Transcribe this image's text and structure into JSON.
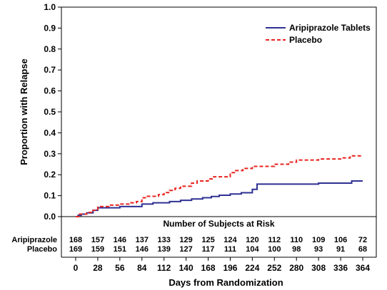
{
  "chart_data": {
    "type": "line",
    "step": true,
    "title": "",
    "xlabel": "Days from Randomization",
    "ylabel": "Proportion with Relapse",
    "xlim": [
      0,
      364
    ],
    "ylim": [
      0,
      1.0
    ],
    "xticks": [
      0,
      28,
      56,
      84,
      112,
      140,
      168,
      196,
      224,
      252,
      280,
      308,
      336,
      364
    ],
    "yticks": [
      0.0,
      0.1,
      0.2,
      0.3,
      0.4,
      0.5,
      0.6,
      0.7,
      0.8,
      0.9,
      1.0
    ],
    "legend_position": "top-right",
    "grid": false,
    "series": [
      {
        "name": "Aripiprazole Tablets",
        "color": "#2e3192",
        "dash": "solid",
        "points": [
          [
            0,
            0
          ],
          [
            3,
            0.006
          ],
          [
            7,
            0.012
          ],
          [
            14,
            0.018
          ],
          [
            22,
            0.03
          ],
          [
            28,
            0.042
          ],
          [
            56,
            0.048
          ],
          [
            84,
            0.06
          ],
          [
            98,
            0.066
          ],
          [
            119,
            0.072
          ],
          [
            133,
            0.078
          ],
          [
            147,
            0.084
          ],
          [
            161,
            0.09
          ],
          [
            172,
            0.096
          ],
          [
            182,
            0.102
          ],
          [
            196,
            0.108
          ],
          [
            210,
            0.114
          ],
          [
            224,
            0.13
          ],
          [
            230,
            0.155
          ],
          [
            308,
            0.16
          ],
          [
            350,
            0.17
          ],
          [
            364,
            0.17
          ]
        ]
      },
      {
        "name": "Placebo",
        "color": "#e8231f",
        "dash": "dashed",
        "points": [
          [
            0,
            0
          ],
          [
            4,
            0.012
          ],
          [
            14,
            0.02
          ],
          [
            22,
            0.03
          ],
          [
            28,
            0.048
          ],
          [
            42,
            0.055
          ],
          [
            56,
            0.06
          ],
          [
            70,
            0.066
          ],
          [
            77,
            0.072
          ],
          [
            84,
            0.09
          ],
          [
            91,
            0.097
          ],
          [
            105,
            0.105
          ],
          [
            112,
            0.115
          ],
          [
            119,
            0.125
          ],
          [
            126,
            0.135
          ],
          [
            133,
            0.145
          ],
          [
            147,
            0.16
          ],
          [
            154,
            0.17
          ],
          [
            168,
            0.18
          ],
          [
            175,
            0.19
          ],
          [
            196,
            0.21
          ],
          [
            203,
            0.22
          ],
          [
            212,
            0.23
          ],
          [
            224,
            0.24
          ],
          [
            252,
            0.25
          ],
          [
            270,
            0.26
          ],
          [
            280,
            0.27
          ],
          [
            308,
            0.275
          ],
          [
            336,
            0.28
          ],
          [
            348,
            0.29
          ],
          [
            364,
            0.29
          ]
        ]
      }
    ],
    "risk_table": {
      "title": "Number of Subjects at Risk",
      "rows": [
        {
          "label": "Aripiprazole",
          "values": [
            "168",
            "157",
            "146",
            "137",
            "133",
            "129",
            "125",
            "124",
            "120",
            "112",
            "110",
            "109",
            "106",
            "72"
          ]
        },
        {
          "label": "Placebo",
          "values": [
            "169",
            "159",
            "151",
            "146",
            "139",
            "127",
            "117",
            "111",
            "104",
            "100",
            "98",
            "93",
            "91",
            "68"
          ]
        }
      ]
    }
  }
}
